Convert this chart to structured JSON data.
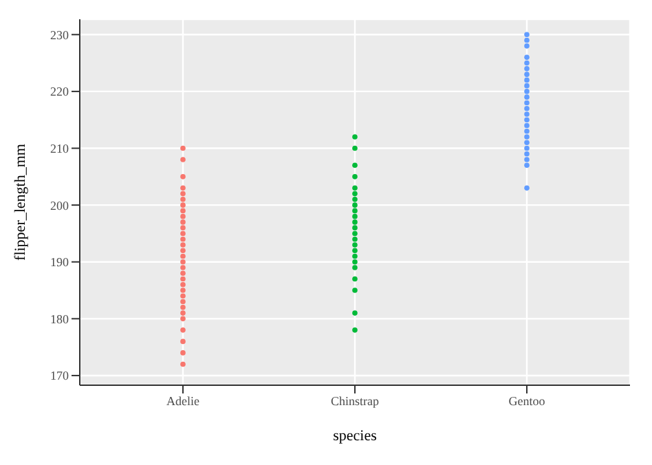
{
  "chart_data": {
    "type": "scatter",
    "xlabel": "species",
    "ylabel": "flipper_length_mm",
    "categories": [
      "Adelie",
      "Chinstrap",
      "Gentoo"
    ],
    "ylim": [
      168.3,
      232.7
    ],
    "yticks": [
      170,
      180,
      190,
      200,
      210,
      220,
      230
    ],
    "grid": true,
    "marker": "circle",
    "series": [
      {
        "color": "#f8766d",
        "x": [
          "Adelie",
          "Adelie",
          "Adelie",
          "Adelie",
          "Adelie",
          "Adelie",
          "Adelie",
          "Adelie",
          "Adelie",
          "Adelie",
          "Adelie",
          "Adelie",
          "Adelie",
          "Adelie",
          "Adelie",
          "Adelie",
          "Adelie",
          "Adelie",
          "Adelie",
          "Adelie",
          "Adelie",
          "Adelie",
          "Adelie",
          "Adelie",
          "Adelie",
          "Adelie",
          "Adelie",
          "Adelie",
          "Adelie",
          "Adelie",
          "Adelie"
        ],
        "values": [
          172,
          174,
          176,
          178,
          180,
          181,
          182,
          183,
          184,
          185,
          186,
          187,
          188,
          189,
          190,
          191,
          192,
          193,
          194,
          195,
          196,
          197,
          198,
          199,
          200,
          201,
          202,
          203,
          205,
          208,
          210
        ]
      },
      {
        "color": "#00ba38",
        "x": [
          "Chinstrap",
          "Chinstrap",
          "Chinstrap",
          "Chinstrap",
          "Chinstrap",
          "Chinstrap",
          "Chinstrap",
          "Chinstrap",
          "Chinstrap",
          "Chinstrap",
          "Chinstrap",
          "Chinstrap",
          "Chinstrap",
          "Chinstrap",
          "Chinstrap",
          "Chinstrap",
          "Chinstrap",
          "Chinstrap",
          "Chinstrap",
          "Chinstrap",
          "Chinstrap",
          "Chinstrap",
          "Chinstrap"
        ],
        "values": [
          178,
          181,
          185,
          187,
          189,
          190,
          191,
          192,
          193,
          194,
          195,
          196,
          197,
          198,
          199,
          200,
          201,
          202,
          203,
          205,
          207,
          210,
          212
        ]
      },
      {
        "color": "#619cff",
        "x": [
          "Gentoo",
          "Gentoo",
          "Gentoo",
          "Gentoo",
          "Gentoo",
          "Gentoo",
          "Gentoo",
          "Gentoo",
          "Gentoo",
          "Gentoo",
          "Gentoo",
          "Gentoo",
          "Gentoo",
          "Gentoo",
          "Gentoo",
          "Gentoo",
          "Gentoo",
          "Gentoo",
          "Gentoo",
          "Gentoo",
          "Gentoo",
          "Gentoo",
          "Gentoo",
          "Gentoo"
        ],
        "values": [
          203,
          207,
          208,
          209,
          210,
          211,
          212,
          213,
          214,
          215,
          216,
          217,
          218,
          219,
          220,
          221,
          222,
          223,
          224,
          225,
          226,
          228,
          229,
          230
        ]
      }
    ]
  }
}
